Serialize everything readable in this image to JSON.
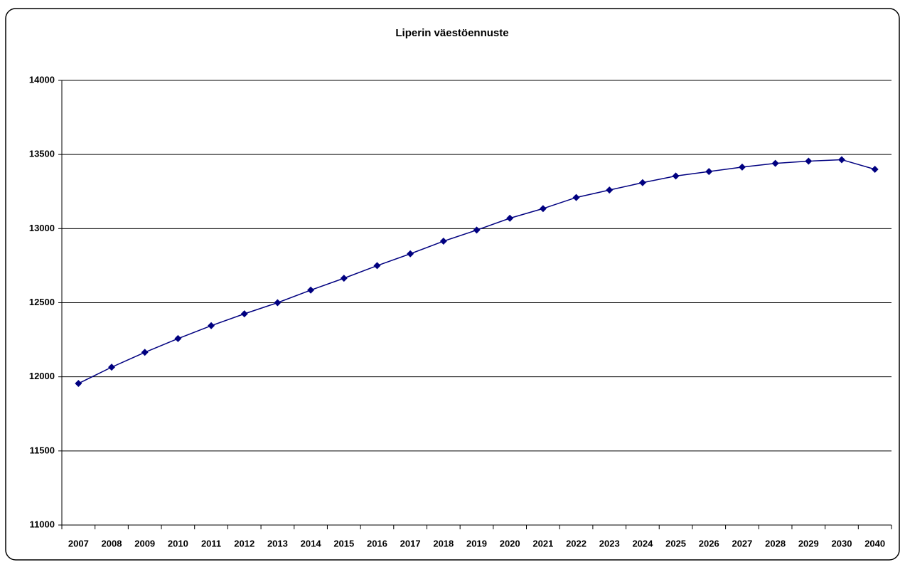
{
  "chart_data": {
    "type": "line",
    "title": "Liperin väestöennuste",
    "categories": [
      "2007",
      "2008",
      "2009",
      "2010",
      "2011",
      "2012",
      "2013",
      "2014",
      "2015",
      "2016",
      "2017",
      "2018",
      "2019",
      "2020",
      "2021",
      "2022",
      "2023",
      "2024",
      "2025",
      "2026",
      "2027",
      "2028",
      "2029",
      "2030",
      "2040"
    ],
    "values": [
      11955,
      12065,
      12165,
      12258,
      12345,
      12425,
      12500,
      12585,
      12665,
      12750,
      12830,
      12915,
      12990,
      13070,
      13135,
      13210,
      13260,
      13310,
      13355,
      13385,
      13415,
      13440,
      13455,
      13465,
      13400
    ],
    "color": "#000080",
    "ylim": [
      11000,
      14000
    ],
    "yticks": [
      11000,
      11500,
      12000,
      12500,
      13000,
      13500,
      14000
    ],
    "grid": true
  }
}
